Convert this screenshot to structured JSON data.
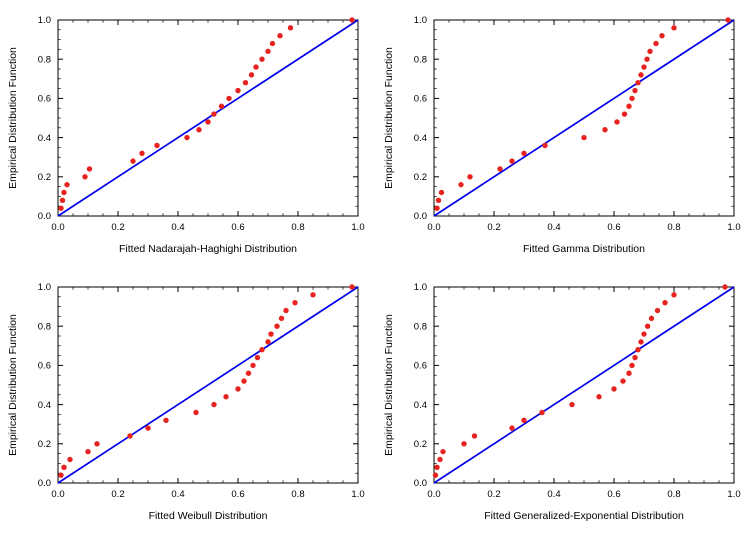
{
  "page": {
    "background": "#ffffff"
  },
  "colors": {
    "line": "#0000ee",
    "points": "#e8231f",
    "frame": "#000000",
    "text": "#000000"
  },
  "chart_data": [
    {
      "type": "scatter",
      "title": "",
      "xlabel": "Fitted Nadarajah-Haghighi Distribution",
      "ylabel": "Empirical Distribution Function",
      "xlim": [
        0,
        1
      ],
      "ylim": [
        0,
        1
      ],
      "xticks": [
        0.0,
        0.2,
        0.4,
        0.6,
        0.8,
        1.0
      ],
      "yticks": [
        0.0,
        0.2,
        0.4,
        0.6,
        0.8,
        1.0
      ],
      "xtick_labels": [
        "0.0",
        "0.2",
        "0.4",
        "0.6",
        "0.8",
        "1.0"
      ],
      "ytick_labels": [
        "0.0",
        "0.2",
        "0.4",
        "0.6",
        "0.8",
        "1.0"
      ],
      "grid": false,
      "reference_line": {
        "from": [
          0,
          0
        ],
        "to": [
          1,
          1
        ],
        "color": "#0000ee"
      },
      "points_color": "#e8231f",
      "points": [
        [
          0.01,
          0.04
        ],
        [
          0.015,
          0.08
        ],
        [
          0.02,
          0.12
        ],
        [
          0.03,
          0.16
        ],
        [
          0.09,
          0.2
        ],
        [
          0.105,
          0.24
        ],
        [
          0.25,
          0.28
        ],
        [
          0.28,
          0.32
        ],
        [
          0.33,
          0.36
        ],
        [
          0.43,
          0.4
        ],
        [
          0.47,
          0.44
        ],
        [
          0.5,
          0.48
        ],
        [
          0.52,
          0.52
        ],
        [
          0.545,
          0.56
        ],
        [
          0.57,
          0.6
        ],
        [
          0.6,
          0.64
        ],
        [
          0.625,
          0.68
        ],
        [
          0.645,
          0.72
        ],
        [
          0.66,
          0.76
        ],
        [
          0.68,
          0.8
        ],
        [
          0.7,
          0.84
        ],
        [
          0.715,
          0.88
        ],
        [
          0.74,
          0.92
        ],
        [
          0.775,
          0.96
        ],
        [
          0.98,
          1.0
        ]
      ]
    },
    {
      "type": "scatter",
      "title": "",
      "xlabel": "Fitted Gamma Distribution",
      "ylabel": "Empirical Distribution Function",
      "xlim": [
        0,
        1
      ],
      "ylim": [
        0,
        1
      ],
      "xticks": [
        0.0,
        0.2,
        0.4,
        0.6,
        0.8,
        1.0
      ],
      "yticks": [
        0.0,
        0.2,
        0.4,
        0.6,
        0.8,
        1.0
      ],
      "xtick_labels": [
        "0.0",
        "0.2",
        "0.4",
        "0.6",
        "0.8",
        "1.0"
      ],
      "ytick_labels": [
        "0.0",
        "0.2",
        "0.4",
        "0.6",
        "0.8",
        "1.0"
      ],
      "grid": false,
      "reference_line": {
        "from": [
          0,
          0
        ],
        "to": [
          1,
          1
        ],
        "color": "#0000ee"
      },
      "points_color": "#e8231f",
      "points": [
        [
          0.01,
          0.04
        ],
        [
          0.015,
          0.08
        ],
        [
          0.025,
          0.12
        ],
        [
          0.09,
          0.16
        ],
        [
          0.12,
          0.2
        ],
        [
          0.22,
          0.24
        ],
        [
          0.26,
          0.28
        ],
        [
          0.3,
          0.32
        ],
        [
          0.37,
          0.36
        ],
        [
          0.5,
          0.4
        ],
        [
          0.57,
          0.44
        ],
        [
          0.61,
          0.48
        ],
        [
          0.635,
          0.52
        ],
        [
          0.65,
          0.56
        ],
        [
          0.66,
          0.6
        ],
        [
          0.67,
          0.64
        ],
        [
          0.68,
          0.68
        ],
        [
          0.69,
          0.72
        ],
        [
          0.7,
          0.76
        ],
        [
          0.71,
          0.8
        ],
        [
          0.72,
          0.84
        ],
        [
          0.74,
          0.88
        ],
        [
          0.76,
          0.92
        ],
        [
          0.8,
          0.96
        ],
        [
          0.98,
          1.0
        ]
      ]
    },
    {
      "type": "scatter",
      "title": "",
      "xlabel": "Fitted Weibull Distribution",
      "ylabel": "Empirical Distribution Function",
      "xlim": [
        0,
        1
      ],
      "ylim": [
        0,
        1
      ],
      "xticks": [
        0.0,
        0.2,
        0.4,
        0.6,
        0.8,
        1.0
      ],
      "yticks": [
        0.0,
        0.2,
        0.4,
        0.6,
        0.8,
        1.0
      ],
      "xtick_labels": [
        "0.0",
        "0.2",
        "0.4",
        "0.6",
        "0.8",
        "1.0"
      ],
      "ytick_labels": [
        "0.0",
        "0.2",
        "0.4",
        "0.6",
        "0.8",
        "1.0"
      ],
      "grid": false,
      "reference_line": {
        "from": [
          0,
          0
        ],
        "to": [
          1,
          1
        ],
        "color": "#0000ee"
      },
      "points_color": "#e8231f",
      "points": [
        [
          0.01,
          0.04
        ],
        [
          0.02,
          0.08
        ],
        [
          0.04,
          0.12
        ],
        [
          0.1,
          0.16
        ],
        [
          0.13,
          0.2
        ],
        [
          0.24,
          0.24
        ],
        [
          0.3,
          0.28
        ],
        [
          0.36,
          0.32
        ],
        [
          0.46,
          0.36
        ],
        [
          0.52,
          0.4
        ],
        [
          0.56,
          0.44
        ],
        [
          0.6,
          0.48
        ],
        [
          0.62,
          0.52
        ],
        [
          0.635,
          0.56
        ],
        [
          0.65,
          0.6
        ],
        [
          0.665,
          0.64
        ],
        [
          0.68,
          0.68
        ],
        [
          0.7,
          0.72
        ],
        [
          0.71,
          0.76
        ],
        [
          0.73,
          0.8
        ],
        [
          0.745,
          0.84
        ],
        [
          0.76,
          0.88
        ],
        [
          0.79,
          0.92
        ],
        [
          0.85,
          0.96
        ],
        [
          0.98,
          1.0
        ]
      ]
    },
    {
      "type": "scatter",
      "title": "",
      "xlabel": "Fitted Generalized-Exponential Distribution",
      "ylabel": "Empirical Distribution Function",
      "xlim": [
        0,
        1
      ],
      "ylim": [
        0,
        1
      ],
      "xticks": [
        0.0,
        0.2,
        0.4,
        0.6,
        0.8,
        1.0
      ],
      "yticks": [
        0.0,
        0.2,
        0.4,
        0.6,
        0.8,
        1.0
      ],
      "xtick_labels": [
        "0.0",
        "0.2",
        "0.4",
        "0.6",
        "0.8",
        "1.0"
      ],
      "ytick_labels": [
        "0.0",
        "0.2",
        "0.4",
        "0.6",
        "0.8",
        "1.0"
      ],
      "grid": false,
      "reference_line": {
        "from": [
          0,
          0
        ],
        "to": [
          1,
          1
        ],
        "color": "#0000ee"
      },
      "points_color": "#e8231f",
      "points": [
        [
          0.005,
          0.04
        ],
        [
          0.01,
          0.08
        ],
        [
          0.02,
          0.12
        ],
        [
          0.03,
          0.16
        ],
        [
          0.1,
          0.2
        ],
        [
          0.135,
          0.24
        ],
        [
          0.26,
          0.28
        ],
        [
          0.3,
          0.32
        ],
        [
          0.36,
          0.36
        ],
        [
          0.46,
          0.4
        ],
        [
          0.55,
          0.44
        ],
        [
          0.6,
          0.48
        ],
        [
          0.63,
          0.52
        ],
        [
          0.65,
          0.56
        ],
        [
          0.66,
          0.6
        ],
        [
          0.67,
          0.64
        ],
        [
          0.68,
          0.68
        ],
        [
          0.69,
          0.72
        ],
        [
          0.7,
          0.76
        ],
        [
          0.712,
          0.8
        ],
        [
          0.725,
          0.84
        ],
        [
          0.745,
          0.88
        ],
        [
          0.77,
          0.92
        ],
        [
          0.8,
          0.96
        ],
        [
          0.97,
          1.0
        ]
      ]
    }
  ]
}
